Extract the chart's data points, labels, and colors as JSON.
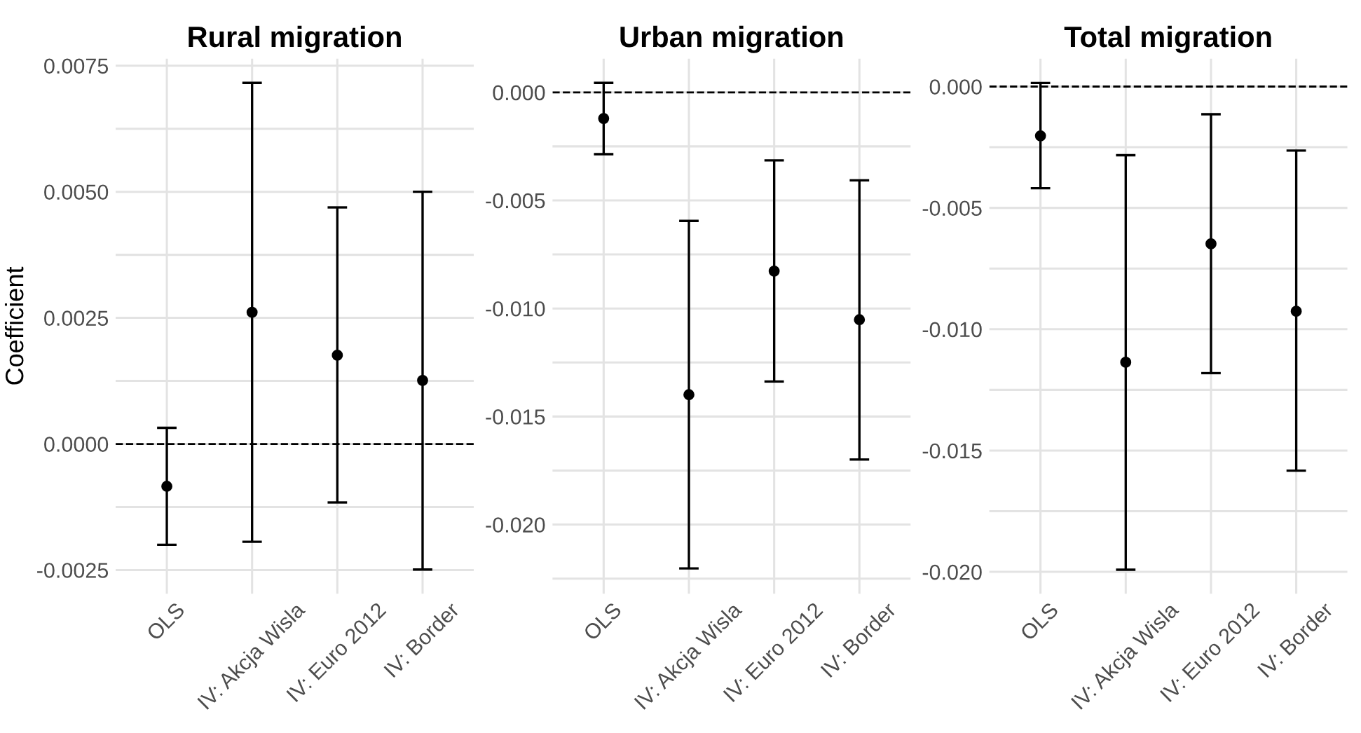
{
  "chart_data": [
    {
      "type": "scatter",
      "title": "Rural migration",
      "ylabel": "Coefficient",
      "categories": [
        "OLS",
        "IV: Akcja Wisla",
        "IV: Euro 2012",
        "IV: Border"
      ],
      "values": [
        -0.00084,
        0.00261,
        0.00176,
        0.00126
      ],
      "errors": [
        [
          -0.002,
          0.00032
        ],
        [
          -0.00194,
          0.00716
        ],
        [
          -0.00116,
          0.00469
        ],
        [
          -0.00249,
          0.005
        ]
      ],
      "color": "#000000",
      "marker": "circle",
      "ylim": [
        -0.00297,
        0.00764
      ],
      "yticks": [
        {
          "value": -0.0025,
          "label": "-0.0025"
        },
        {
          "value": -0.00125,
          "label": null
        },
        {
          "value": 0,
          "label": "0.0000"
        },
        {
          "value": 0.00125,
          "label": null
        },
        {
          "value": 0.0025,
          "label": "0.0025"
        },
        {
          "value": 0.00375,
          "label": null
        },
        {
          "value": 0.005,
          "label": "0.0050"
        },
        {
          "value": 0.00625,
          "label": null
        },
        {
          "value": 0.0075,
          "label": "0.0075"
        }
      ],
      "grid": true,
      "ref_lines": [
        {
          "axis": "y",
          "value": 0,
          "line_style": "dashed",
          "color": "#000000"
        }
      ]
    },
    {
      "type": "scatter",
      "title": "Urban migration",
      "categories": [
        "OLS",
        "IV: Akcja Wisla",
        "IV: Euro 2012",
        "IV: Border"
      ],
      "values": [
        -0.00121,
        -0.01399,
        -0.00827,
        -0.01052
      ],
      "errors": [
        [
          -0.00286,
          0.00044
        ],
        [
          -0.02203,
          -0.00595
        ],
        [
          -0.01338,
          -0.00315
        ],
        [
          -0.01699,
          -0.00407
        ]
      ],
      "color": "#000000",
      "marker": "circle",
      "ylim": [
        -0.0232,
        0.00156
      ],
      "yticks": [
        {
          "value": -0.0225,
          "label": null
        },
        {
          "value": -0.02,
          "label": "-0.020"
        },
        {
          "value": -0.0175,
          "label": null
        },
        {
          "value": -0.015,
          "label": "-0.015"
        },
        {
          "value": -0.0125,
          "label": null
        },
        {
          "value": -0.01,
          "label": "-0.010"
        },
        {
          "value": -0.0075,
          "label": null
        },
        {
          "value": -0.005,
          "label": "-0.005"
        },
        {
          "value": -0.0025,
          "label": null
        },
        {
          "value": 0,
          "label": "0.000"
        }
      ],
      "grid": true,
      "ref_lines": [
        {
          "axis": "y",
          "value": 0,
          "line_style": "dashed",
          "color": "#000000"
        }
      ]
    },
    {
      "type": "scatter",
      "title": "Total migration",
      "categories": [
        "OLS",
        "IV: Akcja Wisla",
        "IV: Euro 2012",
        "IV: Border"
      ],
      "values": [
        -0.00203,
        -0.01136,
        -0.00648,
        -0.00926
      ],
      "errors": [
        [
          -0.00419,
          0.00015
        ],
        [
          -0.01991,
          -0.00283
        ],
        [
          -0.01181,
          -0.00114
        ],
        [
          -0.01583,
          -0.00264
        ]
      ],
      "color": "#000000",
      "marker": "circle",
      "ylim": [
        -0.0209,
        0.00115
      ],
      "yticks": [
        {
          "value": -0.02,
          "label": "-0.020"
        },
        {
          "value": -0.0175,
          "label": null
        },
        {
          "value": -0.015,
          "label": "-0.015"
        },
        {
          "value": -0.0125,
          "label": null
        },
        {
          "value": -0.01,
          "label": "-0.010"
        },
        {
          "value": -0.0075,
          "label": null
        },
        {
          "value": -0.005,
          "label": "-0.005"
        },
        {
          "value": -0.0025,
          "label": null
        },
        {
          "value": 0,
          "label": "0.000"
        }
      ],
      "grid": true,
      "ref_lines": [
        {
          "axis": "y",
          "value": 0,
          "line_style": "dashed",
          "color": "#000000"
        }
      ]
    }
  ]
}
